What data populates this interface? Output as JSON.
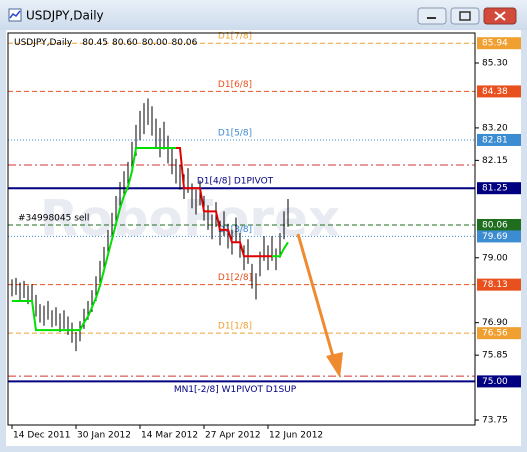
{
  "chart_data": {
    "type": "ohlc",
    "title": "USDJPY,Daily",
    "ohlc_labels": [
      "80.45",
      "80.60",
      "80.00",
      "80.06"
    ],
    "watermark": "RoboForex",
    "order_label": "#34998045 sell",
    "categories": [
      "14 Dec 2011",
      null,
      null,
      null,
      null,
      null,
      null,
      null,
      null,
      null,
      null,
      null,
      null,
      null,
      null,
      null,
      "30 Jan 2012",
      null,
      null,
      null,
      null,
      null,
      null,
      null,
      null,
      null,
      null,
      null,
      null,
      null,
      null,
      null,
      "14 Mar 2012",
      null,
      null,
      null,
      null,
      null,
      null,
      null,
      null,
      null,
      null,
      null,
      null,
      null,
      null,
      null,
      "27 Apr 2012",
      null,
      null,
      null,
      null,
      null,
      null,
      null,
      null,
      null,
      null,
      null,
      null,
      null,
      null,
      null,
      "12 Jun 2012",
      null,
      null,
      null,
      null,
      null
    ],
    "lows": [
      77.75,
      77.8,
      77.6,
      77.7,
      77.5,
      77.6,
      77.1,
      76.9,
      76.8,
      77.0,
      76.75,
      76.8,
      76.6,
      76.7,
      76.5,
      76.25,
      75.98,
      76.3,
      76.7,
      77.0,
      77.25,
      77.6,
      78.1,
      78.5,
      79.05,
      79.55,
      80.1,
      80.55,
      80.95,
      81.2,
      81.8,
      82.3,
      82.8,
      83.0,
      83.3,
      82.95,
      82.55,
      82.25,
      82.5,
      82.05,
      81.7,
      81.4,
      81.2,
      80.9,
      81.1,
      80.6,
      80.4,
      80.7,
      80.2,
      79.9,
      79.6,
      80.0,
      79.4,
      79.7,
      79.3,
      79.1,
      79.5,
      79.0,
      78.6,
      78.8,
      78.0,
      77.65,
      78.4,
      78.9,
      78.6,
      78.9,
      78.6,
      79.0,
      79.6,
      80.0
    ],
    "highs": [
      78.3,
      78.35,
      78.2,
      78.25,
      78.1,
      78.15,
      77.8,
      77.5,
      77.45,
      77.6,
      77.3,
      77.4,
      77.2,
      77.3,
      77.1,
      76.9,
      76.6,
      76.95,
      77.35,
      77.6,
      77.95,
      78.4,
      78.9,
      79.35,
      79.9,
      80.45,
      81.0,
      81.45,
      81.8,
      82.1,
      82.75,
      83.3,
      83.75,
      84.0,
      84.15,
      83.9,
      83.5,
      83.2,
      83.4,
      82.95,
      82.55,
      82.2,
      82.0,
      81.7,
      81.9,
      81.4,
      81.2,
      81.5,
      81.0,
      80.7,
      80.4,
      80.8,
      80.2,
      80.5,
      80.1,
      79.9,
      80.3,
      79.8,
      79.4,
      79.6,
      78.8,
      78.5,
      79.2,
      79.7,
      79.4,
      79.7,
      79.3,
      79.8,
      80.5,
      80.9
    ],
    "bar_color": "#000000",
    "series": [
      {
        "color": "#00e000",
        "values": [
          77.6,
          77.6,
          77.6,
          77.6,
          77.6,
          77.6,
          76.66,
          76.66,
          76.66,
          76.66,
          76.66,
          76.66,
          76.66,
          76.66,
          76.66,
          76.66,
          76.66,
          76.66,
          76.9,
          77.1,
          77.4,
          77.7,
          78.1,
          78.6,
          79.1,
          79.6,
          80.1,
          80.6,
          81.0,
          81.3,
          81.8,
          82.55,
          82.55,
          82.55,
          82.55,
          82.55,
          82.55,
          82.55,
          82.55,
          82.55,
          82.55,
          82.55,
          null,
          null,
          null,
          null,
          null,
          null,
          null,
          null,
          null,
          null,
          null,
          null,
          null,
          null,
          null,
          null,
          null,
          null,
          null,
          null,
          null,
          null,
          null,
          79.05,
          79.05,
          79.05,
          79.3,
          79.5
        ]
      },
      {
        "color": "#e00000",
        "values": [
          null,
          null,
          null,
          null,
          null,
          null,
          null,
          null,
          null,
          null,
          null,
          null,
          null,
          null,
          null,
          null,
          null,
          null,
          null,
          null,
          null,
          null,
          null,
          null,
          null,
          null,
          null,
          null,
          null,
          null,
          null,
          null,
          null,
          null,
          null,
          null,
          null,
          null,
          null,
          null,
          null,
          82.55,
          82.55,
          81.25,
          81.25,
          81.25,
          81.25,
          81.25,
          80.5,
          80.5,
          80.5,
          80.5,
          79.9,
          79.9,
          79.9,
          79.5,
          79.5,
          79.5,
          79.05,
          79.05,
          79.05,
          79.05,
          79.05,
          79.05,
          79.05,
          79.05,
          null,
          null,
          null,
          null
        ]
      }
    ],
    "levels": [
      {
        "name": "D1[7/8]",
        "value": 85.94,
        "color": "#f0a030",
        "style": "dash"
      },
      {
        "name": "D1[6/8]",
        "value": 84.38,
        "color": "#e8501e",
        "style": "dash"
      },
      {
        "name": "D1[5/8]",
        "value": 82.81,
        "color": "#3c8cd2",
        "style": "dot"
      },
      {
        "value": 82.0,
        "color": "#d83030",
        "style": "dashdot"
      },
      {
        "name": "D1[4/8] D1PIVOT",
        "value": 81.25,
        "color": "#000080",
        "style": "solid"
      },
      {
        "value": 80.06,
        "color": "#1e6e1e",
        "style": "dash"
      },
      {
        "name": "D1[3/8]",
        "value": 79.69,
        "color": "#3c8cd2",
        "style": "dot"
      },
      {
        "name": "D1[2/8]",
        "value": 78.13,
        "color": "#e8501e",
        "style": "dash"
      },
      {
        "name": "D1[1/8]",
        "value": 76.56,
        "color": "#f0a030",
        "style": "dash"
      },
      {
        "value": 75.17,
        "color": "#d83030",
        "style": "dashdot"
      },
      {
        "name": "MN1[-2/8] W1PIVOT D1SUP",
        "value": 75.0,
        "value_label": "75.00",
        "color": "#000080",
        "style": "solid"
      }
    ],
    "ylim": [
      73.59,
      86.27
    ],
    "yticks": [
      {
        "value": 85.3,
        "label": "85.30"
      },
      {
        "value": 83.2,
        "label": "83.20"
      },
      82.15,
      {
        "value": 79.0,
        "label": "79.00"
      },
      {
        "value": 76.9,
        "label": "76.90"
      },
      75.85,
      73.75
    ]
  }
}
